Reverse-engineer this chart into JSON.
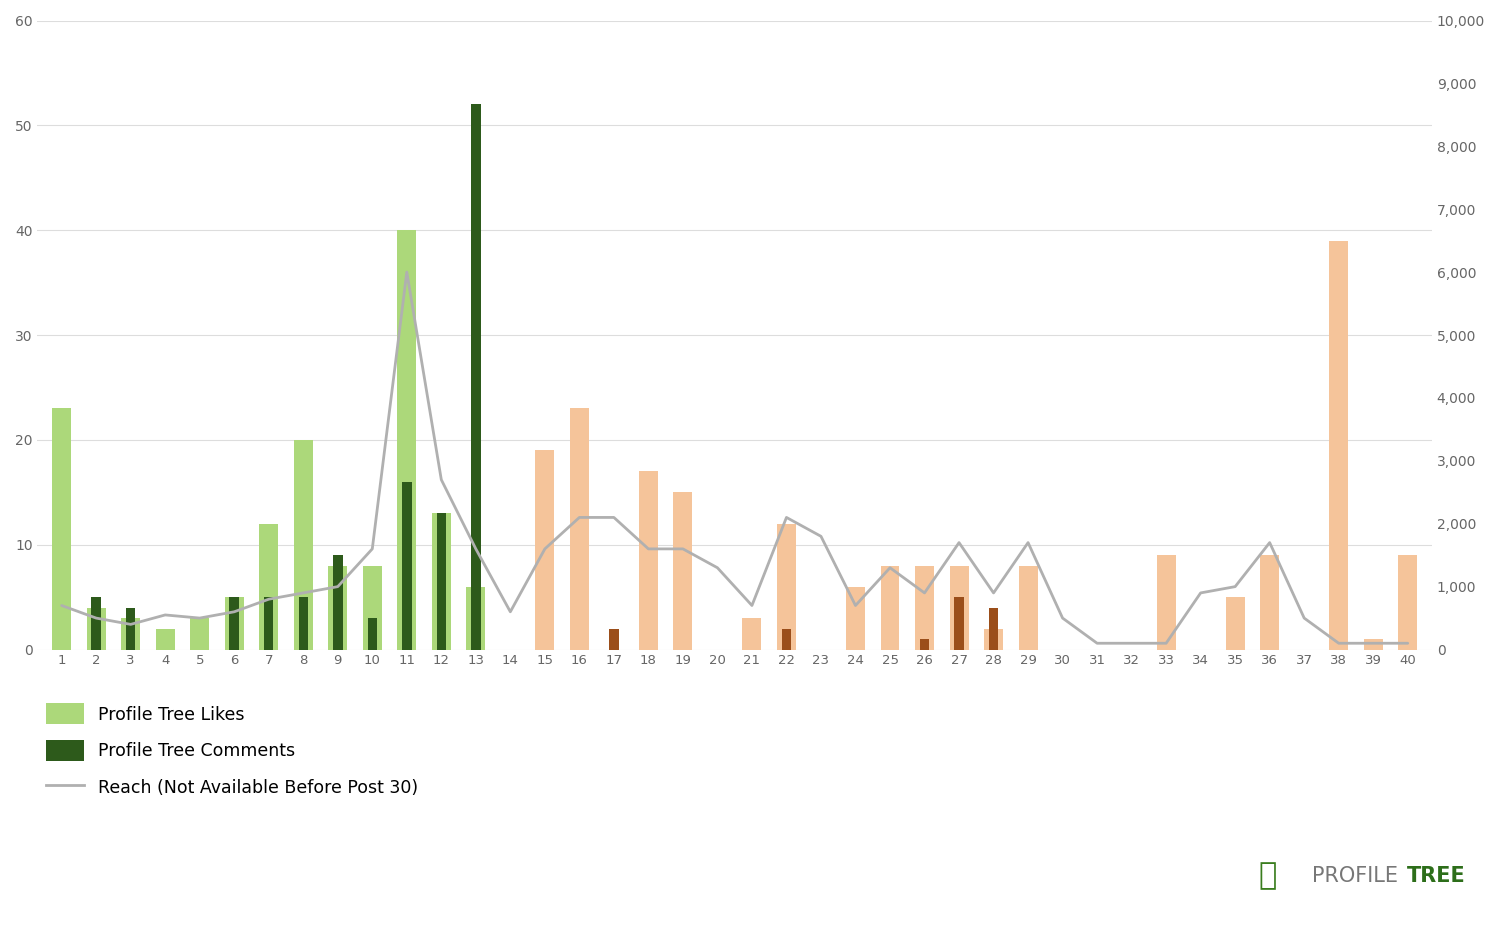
{
  "posts": [
    1,
    2,
    3,
    4,
    5,
    6,
    7,
    8,
    9,
    10,
    11,
    12,
    13,
    14,
    15,
    16,
    17,
    18,
    19,
    20,
    21,
    22,
    23,
    24,
    25,
    26,
    27,
    28,
    29,
    30,
    31,
    32,
    33,
    34,
    35,
    36,
    37,
    38,
    39,
    40
  ],
  "likes": [
    23,
    4,
    3,
    2,
    3,
    5,
    12,
    20,
    8,
    8,
    40,
    13,
    6,
    0,
    19,
    23,
    0,
    17,
    15,
    0,
    3,
    12,
    0,
    6,
    8,
    8,
    8,
    2,
    8,
    0,
    0,
    0,
    9,
    0,
    5,
    9,
    0,
    39,
    1,
    9
  ],
  "comments": [
    0,
    5,
    4,
    0,
    0,
    5,
    5,
    5,
    9,
    3,
    16,
    13,
    52,
    0,
    0,
    0,
    2,
    0,
    0,
    0,
    0,
    2,
    0,
    0,
    0,
    1,
    5,
    4,
    0,
    0,
    0,
    0,
    0,
    0,
    0,
    0,
    0,
    0,
    0,
    0
  ],
  "reach": [
    700,
    500,
    400,
    550,
    500,
    600,
    800,
    900,
    1000,
    1600,
    6000,
    2700,
    1600,
    600,
    1600,
    2100,
    2100,
    1600,
    1600,
    1300,
    700,
    2100,
    1800,
    700,
    1300,
    900,
    1700,
    900,
    1700,
    500,
    100,
    100,
    100,
    900,
    1000,
    1700,
    500,
    100,
    100,
    100
  ],
  "likes_color_left": "#acd87a",
  "comments_color_left": "#2d5a1b",
  "likes_color_right": "#f5c49a",
  "comments_color_right": "#9b4e1a",
  "reach_color": "#b0b0b0",
  "background_color": "#ffffff",
  "ylim_left": [
    0,
    60
  ],
  "ylim_right": [
    0,
    10000
  ],
  "yticks_left": [
    0,
    10,
    20,
    30,
    40,
    50,
    60
  ],
  "yticks_right": [
    0,
    1000,
    2000,
    3000,
    4000,
    5000,
    6000,
    7000,
    8000,
    9000,
    10000
  ],
  "legend_likes": "Profile Tree Likes",
  "legend_comments": "Profile Tree Comments",
  "legend_reach": "Reach (Not Available Before Post 30)",
  "split_post": 14
}
